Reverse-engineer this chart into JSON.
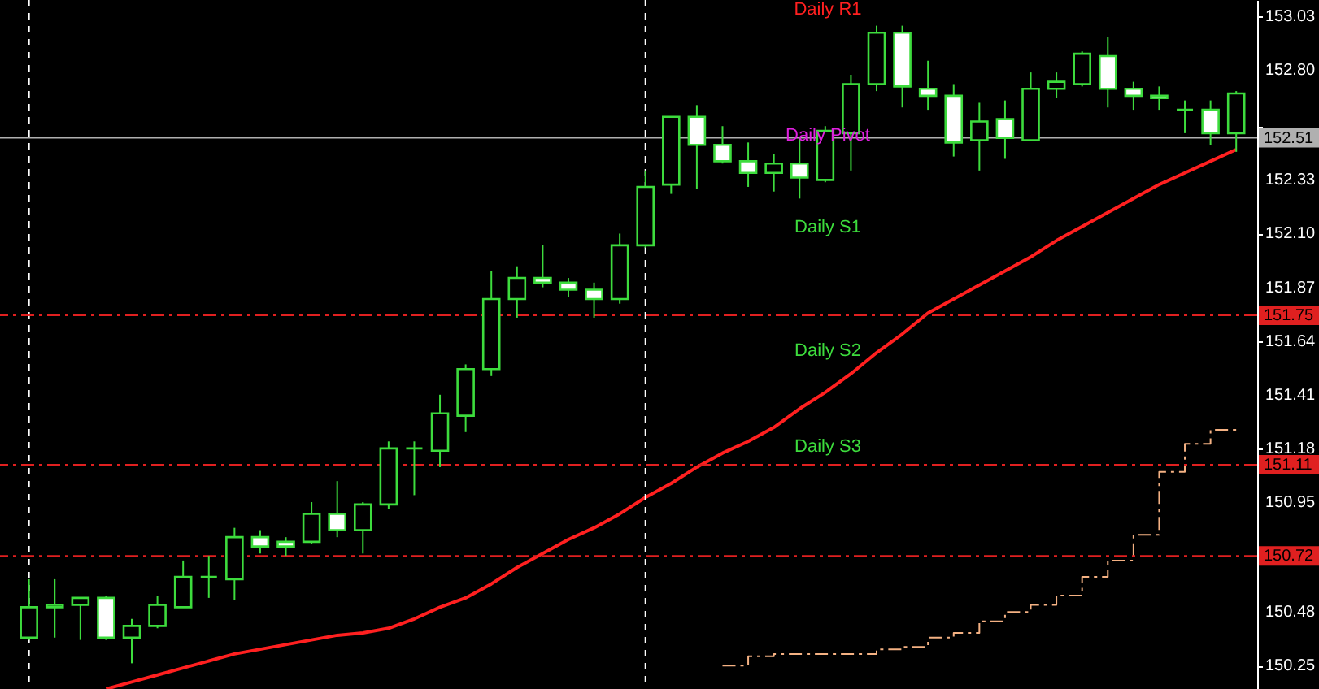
{
  "chart_data": {
    "type": "candlestick",
    "categories": [
      null,
      null,
      null,
      null,
      null,
      null,
      null,
      null,
      null,
      null,
      null,
      null,
      null,
      null,
      null,
      null,
      null,
      null,
      null,
      null,
      null,
      null,
      null,
      null,
      null,
      null,
      null,
      null,
      null,
      null,
      null,
      null,
      null,
      null,
      null,
      null,
      null,
      null,
      null,
      null,
      null,
      null,
      null,
      null,
      null,
      null,
      null,
      null
    ],
    "ylim": [
      150.15,
      153.1
    ],
    "yticks": [
      153.03,
      {
        "value": 152.8,
        "label": "152.80"
      },
      {
        "value": 152.56,
        "label": null
      },
      152.33,
      {
        "value": 152.1,
        "label": "152.10"
      },
      151.87,
      151.64,
      151.41,
      151.18,
      150.95,
      150.72,
      150.48,
      150.25
    ],
    "tick_labels": "y",
    "grid": false,
    "ohlc": [
      [
        150.37,
        150.62,
        150.36,
        150.5
      ],
      [
        150.5,
        150.62,
        150.37,
        150.51
      ],
      [
        150.51,
        150.54,
        150.36,
        150.54
      ],
      [
        150.54,
        150.55,
        150.36,
        150.37
      ],
      [
        150.37,
        150.45,
        150.26,
        150.42
      ],
      [
        150.42,
        150.55,
        150.41,
        150.51
      ],
      [
        150.5,
        150.7,
        150.5,
        150.63
      ],
      [
        150.63,
        150.72,
        150.54,
        150.63
      ],
      [
        150.62,
        150.84,
        150.53,
        150.8
      ],
      [
        150.8,
        150.83,
        150.73,
        150.76
      ],
      [
        150.78,
        150.8,
        150.72,
        150.76
      ],
      [
        150.78,
        150.95,
        150.77,
        150.9
      ],
      [
        150.9,
        151.04,
        150.8,
        150.83
      ],
      [
        150.83,
        150.95,
        150.73,
        150.94
      ],
      [
        150.94,
        151.21,
        150.92,
        151.18
      ],
      [
        151.18,
        151.21,
        150.98,
        151.18
      ],
      [
        151.17,
        151.41,
        151.1,
        151.33
      ],
      [
        151.32,
        151.54,
        151.25,
        151.52
      ],
      [
        151.52,
        151.94,
        151.49,
        151.82
      ],
      [
        151.82,
        151.96,
        151.74,
        151.91
      ],
      [
        151.91,
        152.05,
        151.87,
        151.89
      ],
      [
        151.89,
        151.91,
        151.83,
        151.86
      ],
      [
        151.86,
        151.89,
        151.74,
        151.82
      ],
      [
        151.82,
        152.1,
        151.8,
        152.05
      ],
      [
        152.05,
        152.37,
        152.04,
        152.3
      ],
      [
        152.31,
        152.6,
        152.27,
        152.6
      ],
      [
        152.6,
        152.65,
        152.29,
        152.48
      ],
      [
        152.48,
        152.56,
        152.4,
        152.41
      ],
      [
        152.41,
        152.49,
        152.3,
        152.36
      ],
      [
        152.36,
        152.44,
        152.28,
        152.4
      ],
      [
        152.4,
        152.51,
        152.25,
        152.34
      ],
      [
        152.33,
        152.56,
        152.32,
        152.54
      ],
      [
        152.53,
        152.78,
        152.37,
        152.74
      ],
      [
        152.74,
        152.99,
        152.71,
        152.96
      ],
      [
        152.96,
        152.99,
        152.64,
        152.73
      ],
      [
        152.72,
        152.84,
        152.63,
        152.69
      ],
      [
        152.69,
        152.74,
        152.43,
        152.49
      ],
      [
        152.5,
        152.66,
        152.37,
        152.58
      ],
      [
        152.59,
        152.67,
        152.42,
        152.51
      ],
      [
        152.5,
        152.79,
        152.5,
        152.72
      ],
      [
        152.72,
        152.79,
        152.68,
        152.75
      ],
      [
        152.74,
        152.88,
        152.73,
        152.87
      ],
      [
        152.86,
        152.94,
        152.64,
        152.72
      ],
      [
        152.72,
        152.75,
        152.63,
        152.69
      ],
      [
        152.69,
        152.73,
        152.63,
        152.68
      ],
      [
        152.63,
        152.67,
        152.53,
        152.63
      ],
      [
        152.63,
        152.67,
        152.48,
        152.53
      ],
      [
        152.53,
        152.71,
        152.45,
        152.7
      ]
    ],
    "series": [
      {
        "type": "line",
        "color": "#ff2020",
        "values": [
          null,
          null,
          null,
          150.15,
          150.18,
          150.21,
          150.24,
          150.27,
          150.3,
          150.32,
          150.34,
          150.36,
          150.38,
          150.39,
          150.41,
          150.45,
          150.5,
          150.54,
          150.6,
          150.67,
          150.73,
          150.79,
          150.84,
          150.9,
          150.97,
          151.03,
          151.1,
          151.16,
          151.21,
          151.27,
          151.35,
          151.42,
          151.5,
          151.59,
          151.67,
          151.76,
          151.82,
          151.88,
          151.94,
          152,
          152.07,
          152.13,
          152.19,
          152.25,
          152.31,
          152.36,
          152.41,
          152.46
        ]
      },
      {
        "type": "step",
        "color": "#f4b183",
        "line_style": "dashed",
        "values": [
          null,
          null,
          null,
          null,
          null,
          null,
          null,
          null,
          null,
          null,
          null,
          null,
          null,
          null,
          null,
          null,
          null,
          null,
          null,
          null,
          null,
          null,
          null,
          null,
          null,
          null,
          null,
          150.25,
          150.29,
          150.3,
          150.3,
          150.3,
          150.3,
          150.32,
          150.33,
          150.37,
          150.39,
          150.44,
          150.48,
          150.51,
          150.55,
          150.63,
          150.7,
          150.81,
          151.08,
          151.2,
          151.26,
          151.26
        ]
      }
    ],
    "ref_lines": [
      {
        "axis": "y",
        "value": 152.51,
        "label": "152.51",
        "color": "#b0b0b0",
        "line_style": "solid"
      },
      {
        "axis": "y",
        "value": 151.75,
        "label": "151.75",
        "color": "#e02020",
        "line_style": "dashed"
      },
      {
        "axis": "y",
        "value": 151.11,
        "label": "151.11",
        "color": "#e02020",
        "line_style": "dashed"
      },
      {
        "axis": "y",
        "value": 150.72,
        "label": "150.72",
        "color": "#e02020",
        "line_style": "dashed"
      }
    ],
    "annotations": [
      "Daily R1",
      {
        "text": "Daily Pivot",
        "y": 152.52
      },
      "Daily S1",
      "Daily S2",
      "Daily S3"
    ]
  }
}
